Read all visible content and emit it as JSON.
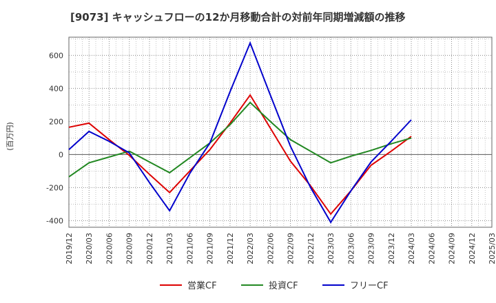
{
  "chart_data": {
    "type": "line",
    "title": "[9073]  キャッシュフローの12か月移動合計の対前年同期増減額の推移",
    "ylabel": "(百万円)",
    "xlabel": "",
    "ylim": [
      -440,
      710
    ],
    "yticks": [
      -400,
      -200,
      0,
      200,
      400,
      600
    ],
    "categories": [
      "2019/12",
      "2020/03",
      "2020/06",
      "2020/09",
      "2020/12",
      "2021/03",
      "2021/06",
      "2021/09",
      "2021/12",
      "2022/03",
      "2022/06",
      "2022/09",
      "2022/12",
      "2023/03",
      "2023/06",
      "2023/09",
      "2023/12",
      "2024/03",
      "2024/06",
      "2024/09",
      "2024/12",
      "2025/03"
    ],
    "series": [
      {
        "name": "営業CF",
        "color": "#dd0000",
        "values": [
          165,
          190,
          90,
          -5,
          -120,
          -230,
          -100,
          30,
          190,
          360,
          160,
          -40,
          -190,
          -360,
          -220,
          -65,
          20,
          110,
          null,
          null,
          null,
          null
        ]
      },
      {
        "name": "投資CF",
        "color": "#228822",
        "values": [
          -135,
          -50,
          -15,
          20,
          -45,
          -110,
          -20,
          70,
          180,
          315,
          200,
          90,
          20,
          -50,
          -10,
          25,
          65,
          100,
          null,
          null,
          null,
          null
        ]
      },
      {
        "name": "フリーCF",
        "color": "#0000cc",
        "values": [
          30,
          140,
          80,
          10,
          -170,
          -340,
          -115,
          70,
          380,
          675,
          360,
          50,
          -200,
          -410,
          -220,
          -45,
          80,
          210,
          null,
          null,
          null,
          null
        ]
      }
    ],
    "grid": true,
    "legend_position": "bottom"
  }
}
